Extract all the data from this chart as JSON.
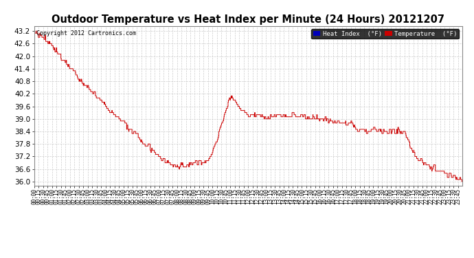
{
  "title": "Outdoor Temperature vs Heat Index per Minute (24 Hours) 20121207",
  "copyright_text": "Copyright 2012 Cartronics.com",
  "legend_labels": [
    "Heat Index  (°F)",
    "Temperature  (°F)"
  ],
  "legend_colors": [
    "#0000bb",
    "#cc0000"
  ],
  "legend_bg": "#000000",
  "line_color": "#cc0000",
  "bg_color": "#ffffff",
  "plot_bg": "#ffffff",
  "grid_color": "#cccccc",
  "ylim": [
    35.8,
    43.45
  ],
  "yticks": [
    36.0,
    36.6,
    37.2,
    37.8,
    38.4,
    39.0,
    39.6,
    40.2,
    40.8,
    41.4,
    42.0,
    42.6,
    43.2
  ],
  "xlabel_fontsize": 5.5,
  "ylabel_fontsize": 7.5,
  "title_fontsize": 10.5,
  "tick_interval_minutes": 15,
  "total_minutes": 1440,
  "control_times": [
    0,
    30,
    60,
    90,
    120,
    180,
    240,
    300,
    360,
    400,
    430,
    460,
    475,
    490,
    510,
    530,
    550,
    570,
    590,
    610,
    630,
    645,
    655,
    665,
    670,
    680,
    690,
    700,
    710,
    720,
    735,
    750,
    765,
    780,
    810,
    840,
    870,
    900,
    930,
    960,
    975,
    990,
    1005,
    1020,
    1035,
    1050,
    1065,
    1080,
    1095,
    1110,
    1125,
    1140,
    1155,
    1170,
    1185,
    1200,
    1215,
    1230,
    1245,
    1260,
    1275,
    1290,
    1305,
    1320,
    1335,
    1350,
    1365,
    1380,
    1395,
    1410,
    1425,
    1435,
    1439
  ],
  "control_vals": [
    43.2,
    42.9,
    42.5,
    42.0,
    41.5,
    40.5,
    39.6,
    38.8,
    38.0,
    37.5,
    37.1,
    36.8,
    36.75,
    36.75,
    36.8,
    36.85,
    36.9,
    36.9,
    37.1,
    37.8,
    38.8,
    39.5,
    39.8,
    40.2,
    40.05,
    39.75,
    39.55,
    39.4,
    39.35,
    39.2,
    39.2,
    39.15,
    39.1,
    39.0,
    39.15,
    39.2,
    39.2,
    39.1,
    39.05,
    39.0,
    38.95,
    38.9,
    38.85,
    38.85,
    38.85,
    38.85,
    38.85,
    38.5,
    38.45,
    38.45,
    38.45,
    38.45,
    38.45,
    38.45,
    38.4,
    38.4,
    38.45,
    38.4,
    38.35,
    37.8,
    37.4,
    37.1,
    36.9,
    36.75,
    36.65,
    36.6,
    36.55,
    36.5,
    36.4,
    36.25,
    36.1,
    36.05,
    36.0
  ]
}
